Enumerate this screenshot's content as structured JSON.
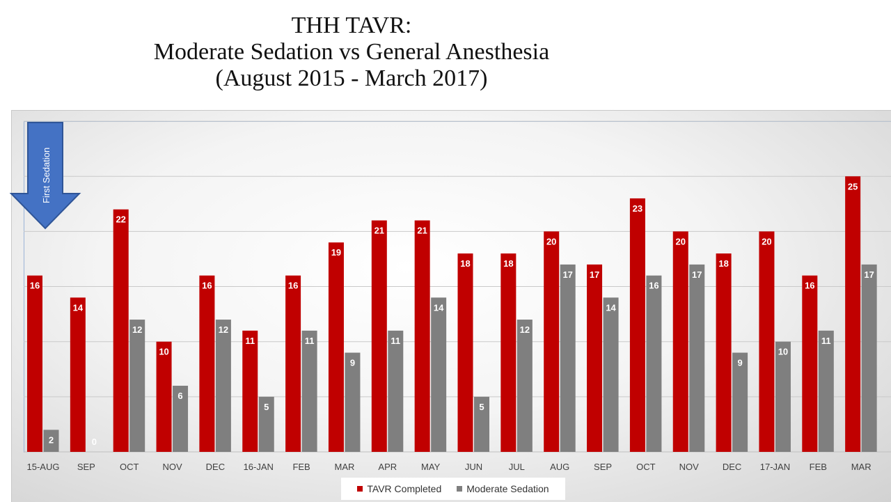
{
  "title_lines": [
    "THH TAVR:",
    "Moderate Sedation vs General Anesthesia",
    "(August 2015 - March 2017)"
  ],
  "annotation": "First Sedation",
  "chart_data": {
    "type": "bar",
    "title": "THH TAVR: Moderate Sedation vs General Anesthesia (August 2015 - March 2017)",
    "categories": [
      "15-AUG",
      "SEP",
      "OCT",
      "NOV",
      "DEC",
      "16-JAN",
      "FEB",
      "MAR",
      "APR",
      "MAY",
      "JUN",
      "JUL",
      "AUG",
      "SEP",
      "OCT",
      "NOV",
      "DEC",
      "17-JAN",
      "FEB",
      "MAR"
    ],
    "series": [
      {
        "name": "TAVR Completed",
        "color": "#c00000",
        "values": [
          16,
          14,
          22,
          10,
          16,
          11,
          16,
          19,
          21,
          21,
          18,
          18,
          20,
          17,
          23,
          20,
          18,
          20,
          16,
          25
        ]
      },
      {
        "name": "Moderate Sedation",
        "color": "#7f7f7f",
        "values": [
          2,
          0,
          12,
          6,
          12,
          5,
          11,
          9,
          11,
          14,
          5,
          12,
          17,
          14,
          16,
          17,
          9,
          10,
          11,
          17
        ]
      }
    ],
    "ylim": [
      0,
      30
    ],
    "gridlines": true,
    "legend_position": "bottom",
    "xlabel": "",
    "ylabel": ""
  },
  "legend": {
    "tavr_label": "TAVR Completed",
    "sedation_label": "Moderate Sedation"
  }
}
